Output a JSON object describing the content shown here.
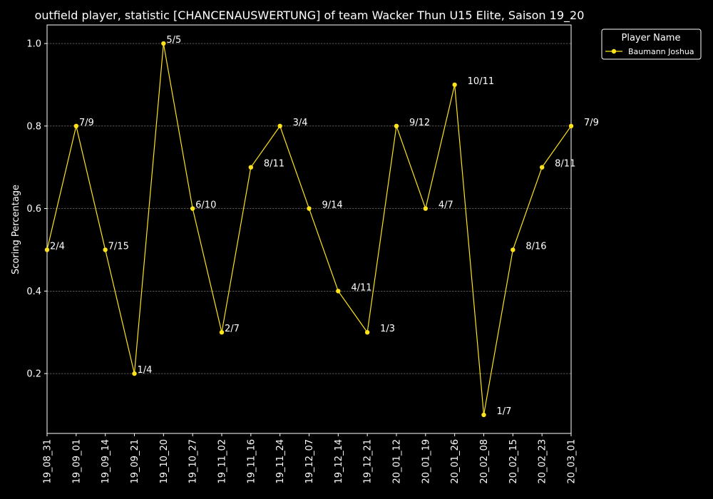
{
  "chart_data": {
    "type": "line",
    "title": "outfield player, statistic [CHANCENAUSWERTUNG] of team Wacker Thun U15 Elite, Saison 19_20",
    "xlabel": "",
    "ylabel": "Scoring Percentage",
    "categories": [
      "19_08_31",
      "19_09_01",
      "19_09_14",
      "19_09_21",
      "19_10_20",
      "19_10_27",
      "19_11_02",
      "19_11_16",
      "19_11_24",
      "19_12_07",
      "19_12_14",
      "19_12_21",
      "20_01_12",
      "20_01_19",
      "20_01_26",
      "20_02_08",
      "20_02_15",
      "20_02_23",
      "20_03_01"
    ],
    "series": [
      {
        "name": "Baumann Joshua",
        "color": "#ffe31a",
        "values": [
          0.5,
          0.8,
          0.5,
          0.2,
          1.0,
          0.6,
          0.3,
          0.7,
          0.8,
          0.6,
          0.4,
          0.3,
          0.8,
          0.6,
          0.9,
          0.1,
          0.5,
          0.7,
          0.8
        ],
        "labels": [
          "2/4",
          "7/9",
          "7/15",
          "1/4",
          "5/5",
          "6/10",
          "2/7",
          "8/11",
          "3/4",
          "9/14",
          "4/11",
          "1/3",
          "9/12",
          "4/7",
          "10/11",
          "1/7",
          "8/16",
          "8/11",
          "7/9"
        ]
      }
    ],
    "ylim": [
      0.055,
      1.045
    ],
    "yticks": [
      "0.2",
      "0.4",
      "0.6",
      "0.8",
      "1.0"
    ],
    "grid": true,
    "legend": {
      "title": "Player Name",
      "placement": "outside-top-right"
    }
  }
}
